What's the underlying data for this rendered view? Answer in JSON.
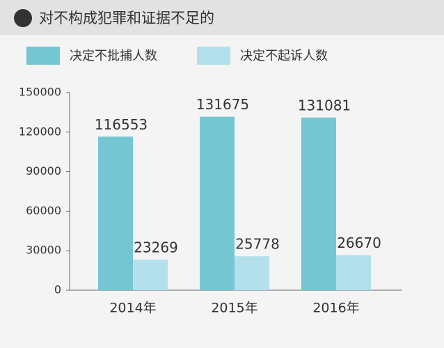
{
  "chart_data": {
    "type": "bar",
    "title": "对不构成犯罪和证据不足的",
    "categories": [
      "2014年",
      "2015年",
      "2016年"
    ],
    "series": [
      {
        "name": "决定不批捕人数",
        "color": "#74c6d3",
        "values": [
          116553,
          131675,
          131081
        ]
      },
      {
        "name": "决定不起诉人数",
        "color": "#b3e0eb",
        "values": [
          23269,
          25778,
          26670
        ]
      }
    ],
    "ylim": [
      0,
      150000
    ],
    "yticks": [
      0,
      30000,
      60000,
      90000,
      120000,
      150000
    ],
    "grid": false
  }
}
